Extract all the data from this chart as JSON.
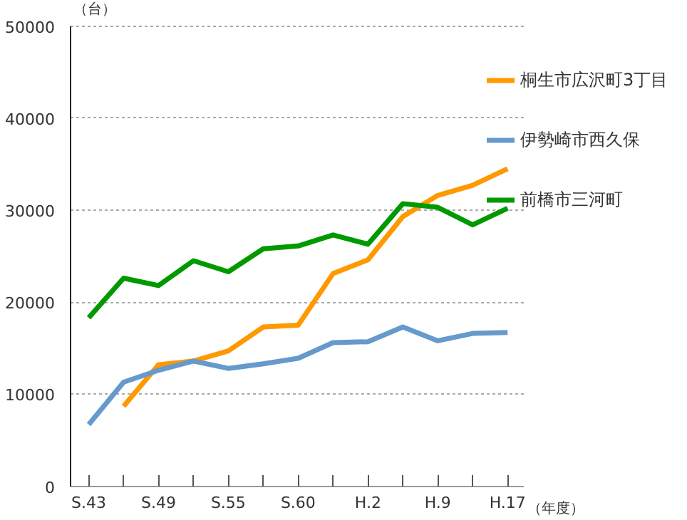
{
  "chart_data": {
    "type": "line",
    "ylabel": "（台）",
    "xlabel": "（年度）",
    "categories": [
      "S.43",
      null,
      "S.49",
      null,
      "S.55",
      null,
      "S.60",
      null,
      "H.2",
      null,
      "H.9",
      null,
      "H.17"
    ],
    "series": [
      {
        "name": "桐生市広沢町3丁目",
        "color": "#ff9900",
        "values": [
          null,
          8700,
          13200,
          13600,
          14700,
          17300,
          17500,
          23100,
          24600,
          29300,
          31600,
          32700,
          34500
        ]
      },
      {
        "name": "伊勢崎市西久保",
        "color": "#6699cc",
        "values": [
          6700,
          11300,
          12600,
          13600,
          12800,
          13300,
          13900,
          15600,
          15700,
          17300,
          15800,
          16600,
          16700
        ]
      },
      {
        "name": "前橋市三河町",
        "color": "#009900",
        "values": [
          18300,
          22600,
          21800,
          24500,
          23300,
          25800,
          26100,
          27300,
          26300,
          30700,
          30300,
          28400,
          30200
        ]
      }
    ],
    "ylim": [
      0,
      50000
    ],
    "yticks": [
      0,
      10000,
      20000,
      30000,
      40000,
      50000
    ],
    "grid": "y",
    "legend": "right",
    "marker": "none",
    "line_style": "solid"
  }
}
